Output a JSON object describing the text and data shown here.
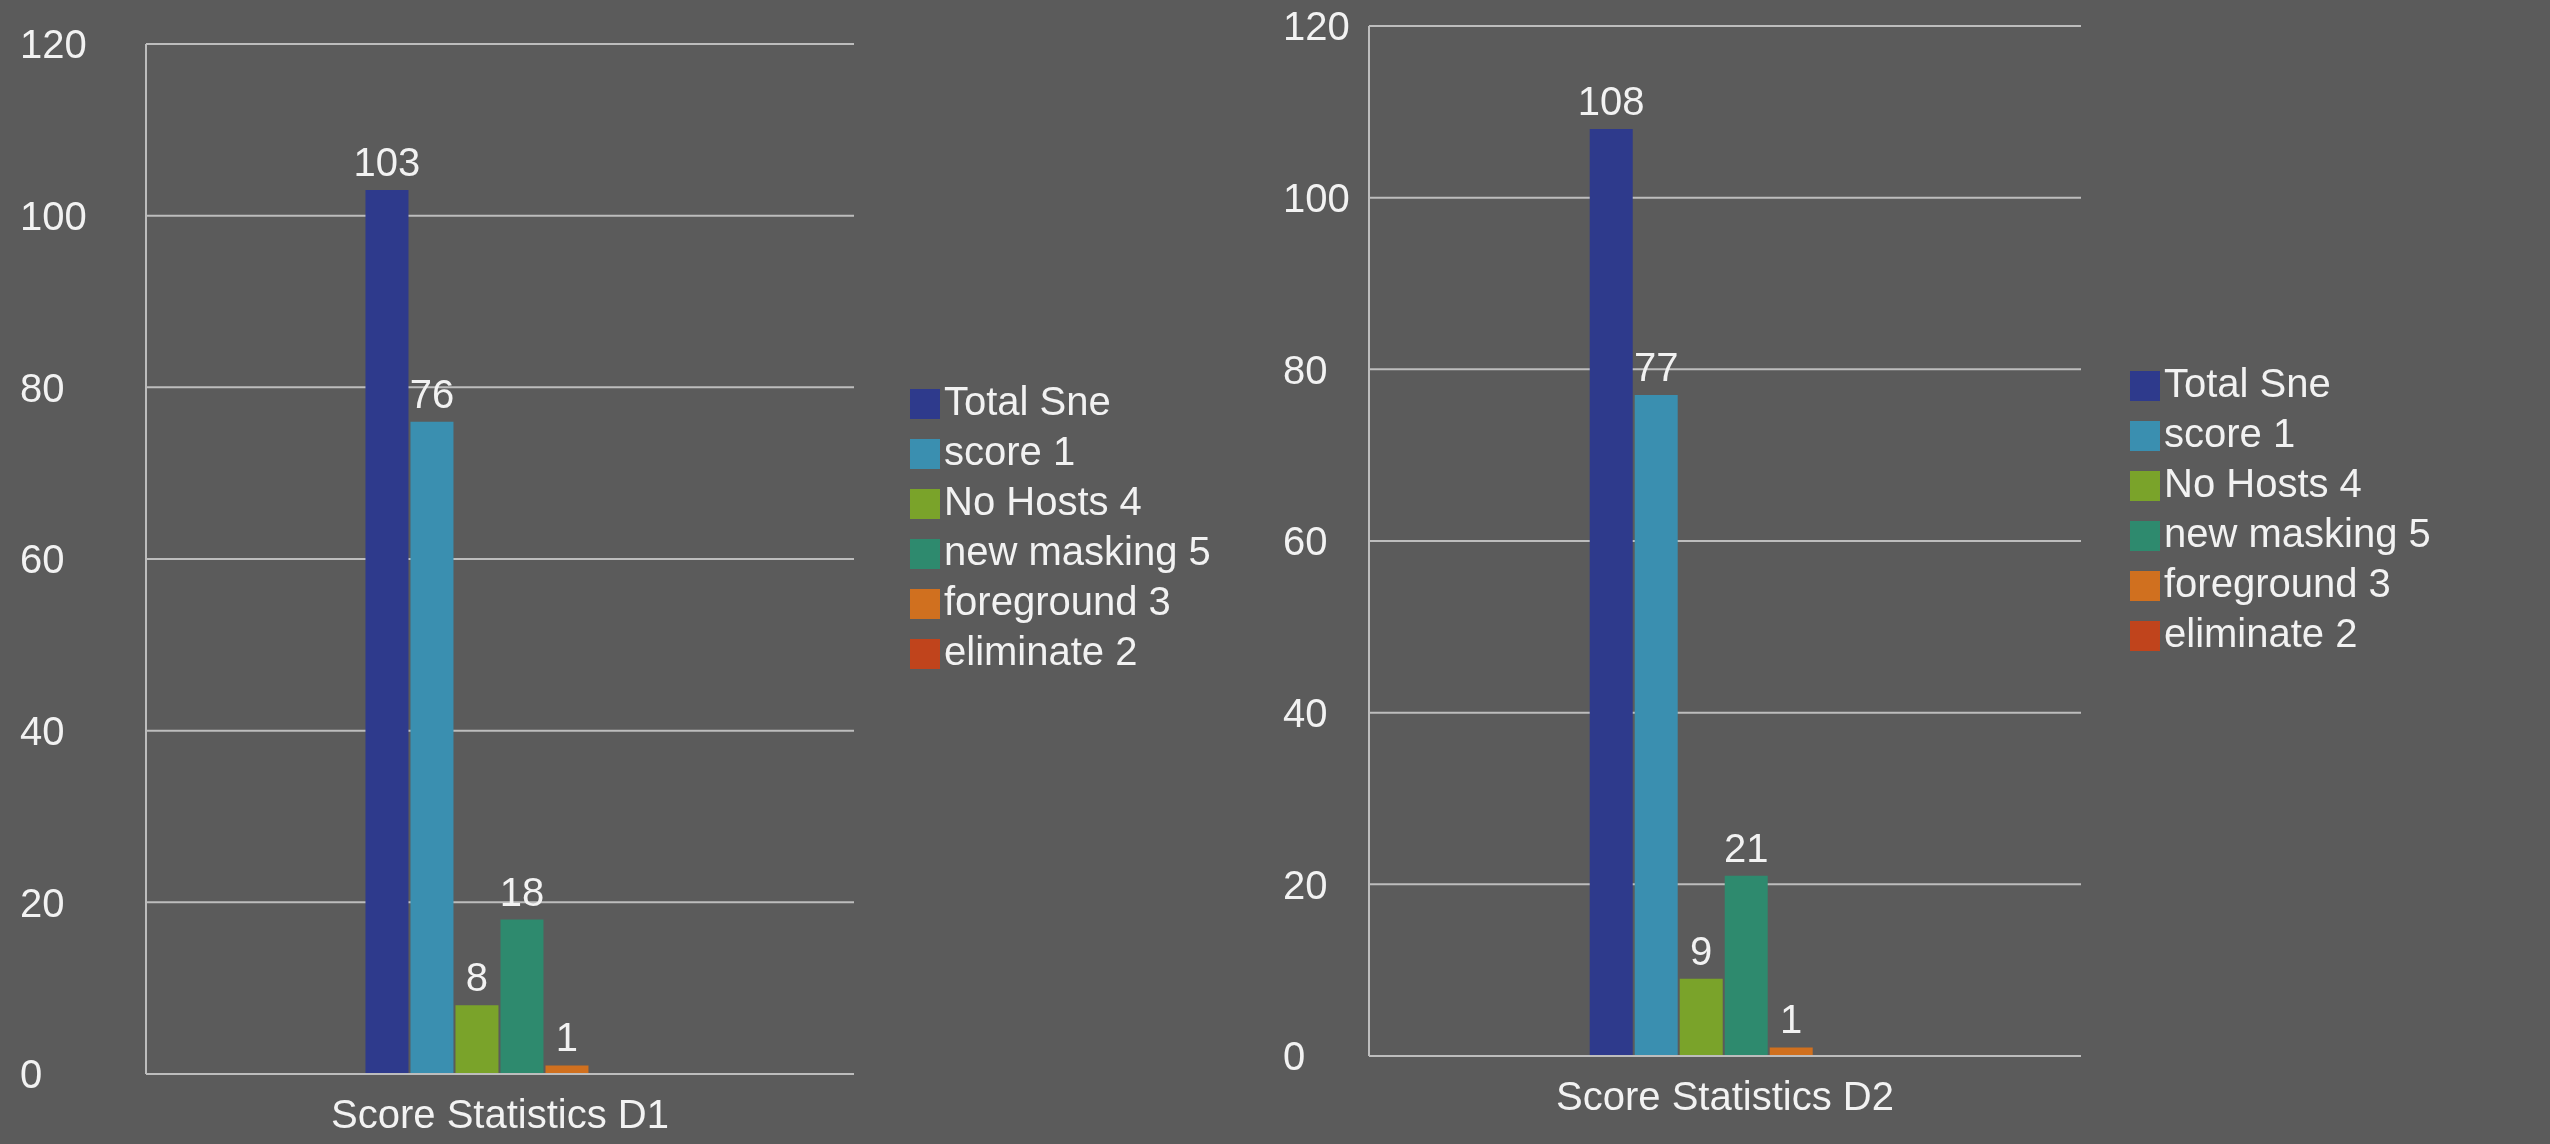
{
  "chart_data": [
    {
      "type": "bar",
      "categories": [
        "Score Statistics D1"
      ],
      "ylim": [
        0,
        120
      ],
      "yticks": [
        0,
        20,
        40,
        60,
        80,
        100,
        120
      ],
      "grid": "y",
      "legend": "right",
      "series": [
        {
          "name": "Total Sne",
          "color": "#2e3a8c",
          "values": [
            103
          ],
          "value_labels": [
            "103"
          ]
        },
        {
          "name": "score 1",
          "color": "#3a8fb0",
          "values": [
            76
          ],
          "value_labels": [
            "76"
          ]
        },
        {
          "name": "No Hosts 4",
          "color": "#7aa32a",
          "values": [
            8
          ],
          "value_labels": [
            "8"
          ]
        },
        {
          "name": "new masking 5",
          "color": "#2e8a6e",
          "values": [
            18
          ],
          "value_labels": [
            "18"
          ]
        },
        {
          "name": "foreground 3",
          "color": "#d0701f",
          "values": [
            1
          ],
          "value_labels": [
            "1"
          ]
        },
        {
          "name": "eliminate 2",
          "color": "#c0441c",
          "values": [
            0
          ],
          "value_labels": [
            null
          ]
        }
      ]
    },
    {
      "type": "bar",
      "categories": [
        "Score Statistics D2"
      ],
      "ylim": [
        0,
        120
      ],
      "yticks": [
        0,
        20,
        40,
        60,
        80,
        100,
        120
      ],
      "grid": "y",
      "legend": "right",
      "series": [
        {
          "name": "Total Sne",
          "color": "#2e3a8c",
          "values": [
            108
          ],
          "value_labels": [
            "108"
          ]
        },
        {
          "name": "score 1",
          "color": "#3a8fb0",
          "values": [
            77
          ],
          "value_labels": [
            "77"
          ]
        },
        {
          "name": "No Hosts 4",
          "color": "#7aa32a",
          "values": [
            9
          ],
          "value_labels": [
            "9"
          ]
        },
        {
          "name": "new masking 5",
          "color": "#2e8a6e",
          "values": [
            21
          ],
          "value_labels": [
            "21"
          ]
        },
        {
          "name": "foreground 3",
          "color": "#d0701f",
          "values": [
            1
          ],
          "value_labels": [
            "1"
          ]
        },
        {
          "name": "eliminate 2",
          "color": "#c0441c",
          "values": [
            0
          ],
          "value_labels": [
            null
          ]
        }
      ]
    }
  ]
}
